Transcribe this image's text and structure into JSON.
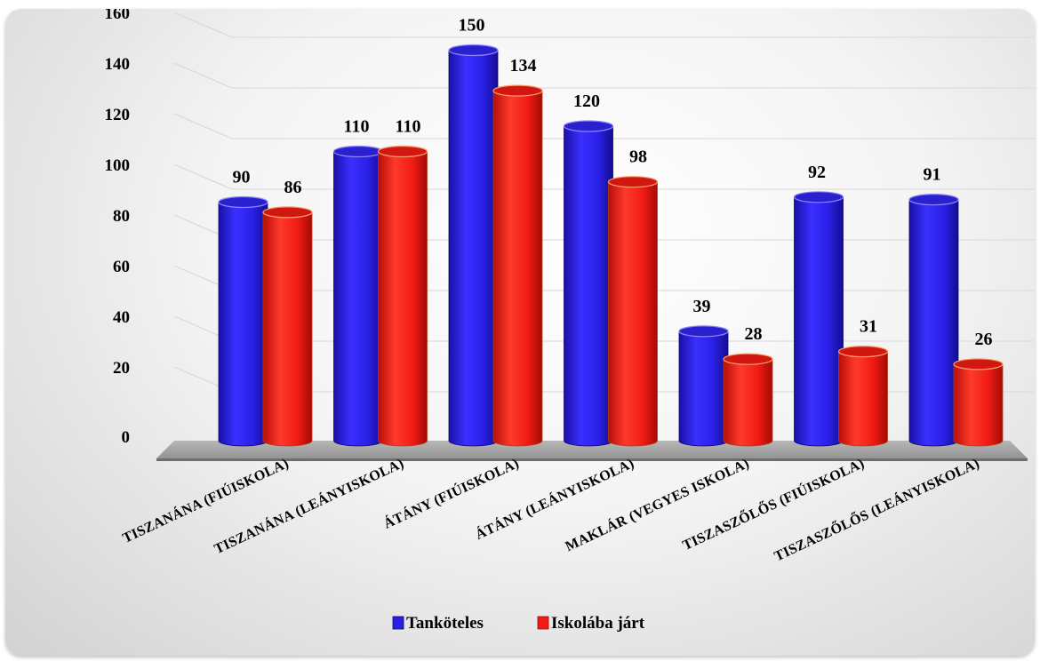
{
  "chart_data": {
    "type": "bar",
    "categories": [
      "TISZANÁNA (FIÚISKOLA)",
      "TISZANÁNA (LEÁNYISKOLA)",
      "ÁTÁNY (FIÚISKOLA)",
      "ÁTÁNY (LEÁNYISKOLA)",
      "MAKLÁR (VEGYES ISKOLA)",
      "TISZASZŐLŐS (FIÚISKOLA)",
      "TISZASZŐLŐS (LEÁNYISKOLA)"
    ],
    "series": [
      {
        "name": "Tanköteles",
        "color": "#2a1ee0",
        "values": [
          90,
          110,
          150,
          120,
          39,
          92,
          91
        ]
      },
      {
        "name": "Iskolába járt",
        "color": "#f01c14",
        "values": [
          86,
          110,
          134,
          98,
          28,
          31,
          26
        ]
      }
    ],
    "ylim": [
      0,
      160
    ],
    "yticks": [
      0,
      20,
      40,
      60,
      80,
      100,
      120,
      140,
      160
    ],
    "grid": true,
    "legend": "bottom",
    "style": "3d-cylinder"
  }
}
